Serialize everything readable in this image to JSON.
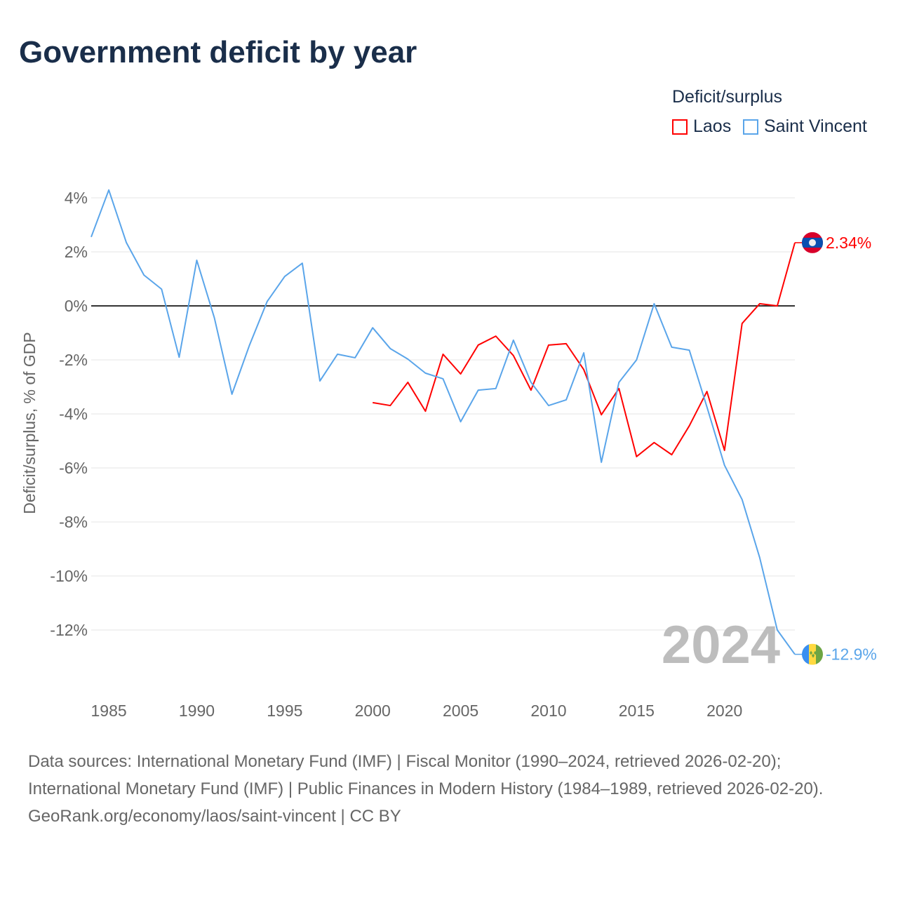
{
  "title": "Government deficit by year",
  "legend": {
    "title": "Deficit/surplus",
    "items": [
      {
        "name": "Laos",
        "color": "#ff0000"
      },
      {
        "name": "Saint Vincent",
        "color": "#5aa5ea"
      }
    ]
  },
  "watermark_year": "2024",
  "footer": {
    "sources": "Data sources: International Monetary Fund (IMF) | Fiscal Monitor (1990–2024, retrieved 2026-02-20); International Monetary Fund (IMF) | Public Finances in Modern History (1984–1989, retrieved 2026-02-20).",
    "credit": "GeoRank.org/economy/laos/saint-vincent | CC BY"
  },
  "chart_data": {
    "type": "line",
    "title": "Government deficit by year",
    "xlabel": "",
    "ylabel": "Deficit/surplus, % of GDP",
    "xlim": [
      1984,
      2024
    ],
    "ylim": [
      -13.5,
      4.5
    ],
    "xticks": [
      1985,
      1990,
      1995,
      2000,
      2005,
      2010,
      2015,
      2020
    ],
    "yticks": [
      4,
      2,
      0,
      -2,
      -4,
      -6,
      -8,
      -10,
      -12
    ],
    "ytick_labels": [
      "4%",
      "2%",
      "0%",
      "-2%",
      "-4%",
      "-6%",
      "-8%",
      "-10%",
      "-12%"
    ],
    "grid": true,
    "legend_position": "top-right",
    "series": [
      {
        "name": "Laos",
        "color": "#ff0000",
        "end_label": "2.34%",
        "flag": "laos",
        "x": [
          2000,
          2001,
          2002,
          2003,
          2004,
          2005,
          2006,
          2007,
          2008,
          2009,
          2010,
          2011,
          2012,
          2013,
          2014,
          2015,
          2016,
          2017,
          2018,
          2019,
          2020,
          2021,
          2022,
          2023,
          2024
        ],
        "values": [
          -3.58,
          -3.69,
          -2.83,
          -3.9,
          -1.79,
          -2.52,
          -1.45,
          -1.12,
          -1.84,
          -3.12,
          -1.45,
          -1.4,
          -2.36,
          -4.03,
          -3.06,
          -5.58,
          -5.06,
          -5.51,
          -4.44,
          -3.17,
          -5.35,
          -0.65,
          0.08,
          0.0,
          2.34
        ]
      },
      {
        "name": "Saint Vincent",
        "color": "#5aa5ea",
        "end_label": "-12.9%",
        "flag": "saint-vincent",
        "x": [
          1984,
          1985,
          1986,
          1987,
          1988,
          1989,
          1990,
          1991,
          1992,
          1993,
          1994,
          1995,
          1996,
          1997,
          1998,
          1999,
          2000,
          2001,
          2002,
          2003,
          2004,
          2005,
          2006,
          2007,
          2008,
          2009,
          2010,
          2011,
          2012,
          2013,
          2014,
          2015,
          2016,
          2017,
          2018,
          2019,
          2020,
          2021,
          2022,
          2023,
          2024
        ],
        "values": [
          2.55,
          4.29,
          2.34,
          1.14,
          0.62,
          -1.9,
          1.69,
          -0.44,
          -3.27,
          -1.45,
          0.16,
          1.09,
          1.58,
          -2.78,
          -1.79,
          -1.92,
          -0.81,
          -1.58,
          -1.97,
          -2.49,
          -2.7,
          -4.29,
          -3.12,
          -3.06,
          -1.27,
          -2.83,
          -3.69,
          -3.48,
          -1.74,
          -5.79,
          -2.83,
          -2.0,
          0.08,
          -1.53,
          -1.64,
          -3.74,
          -5.9,
          -7.17,
          -9.32,
          -12.0,
          -12.9
        ]
      }
    ]
  }
}
